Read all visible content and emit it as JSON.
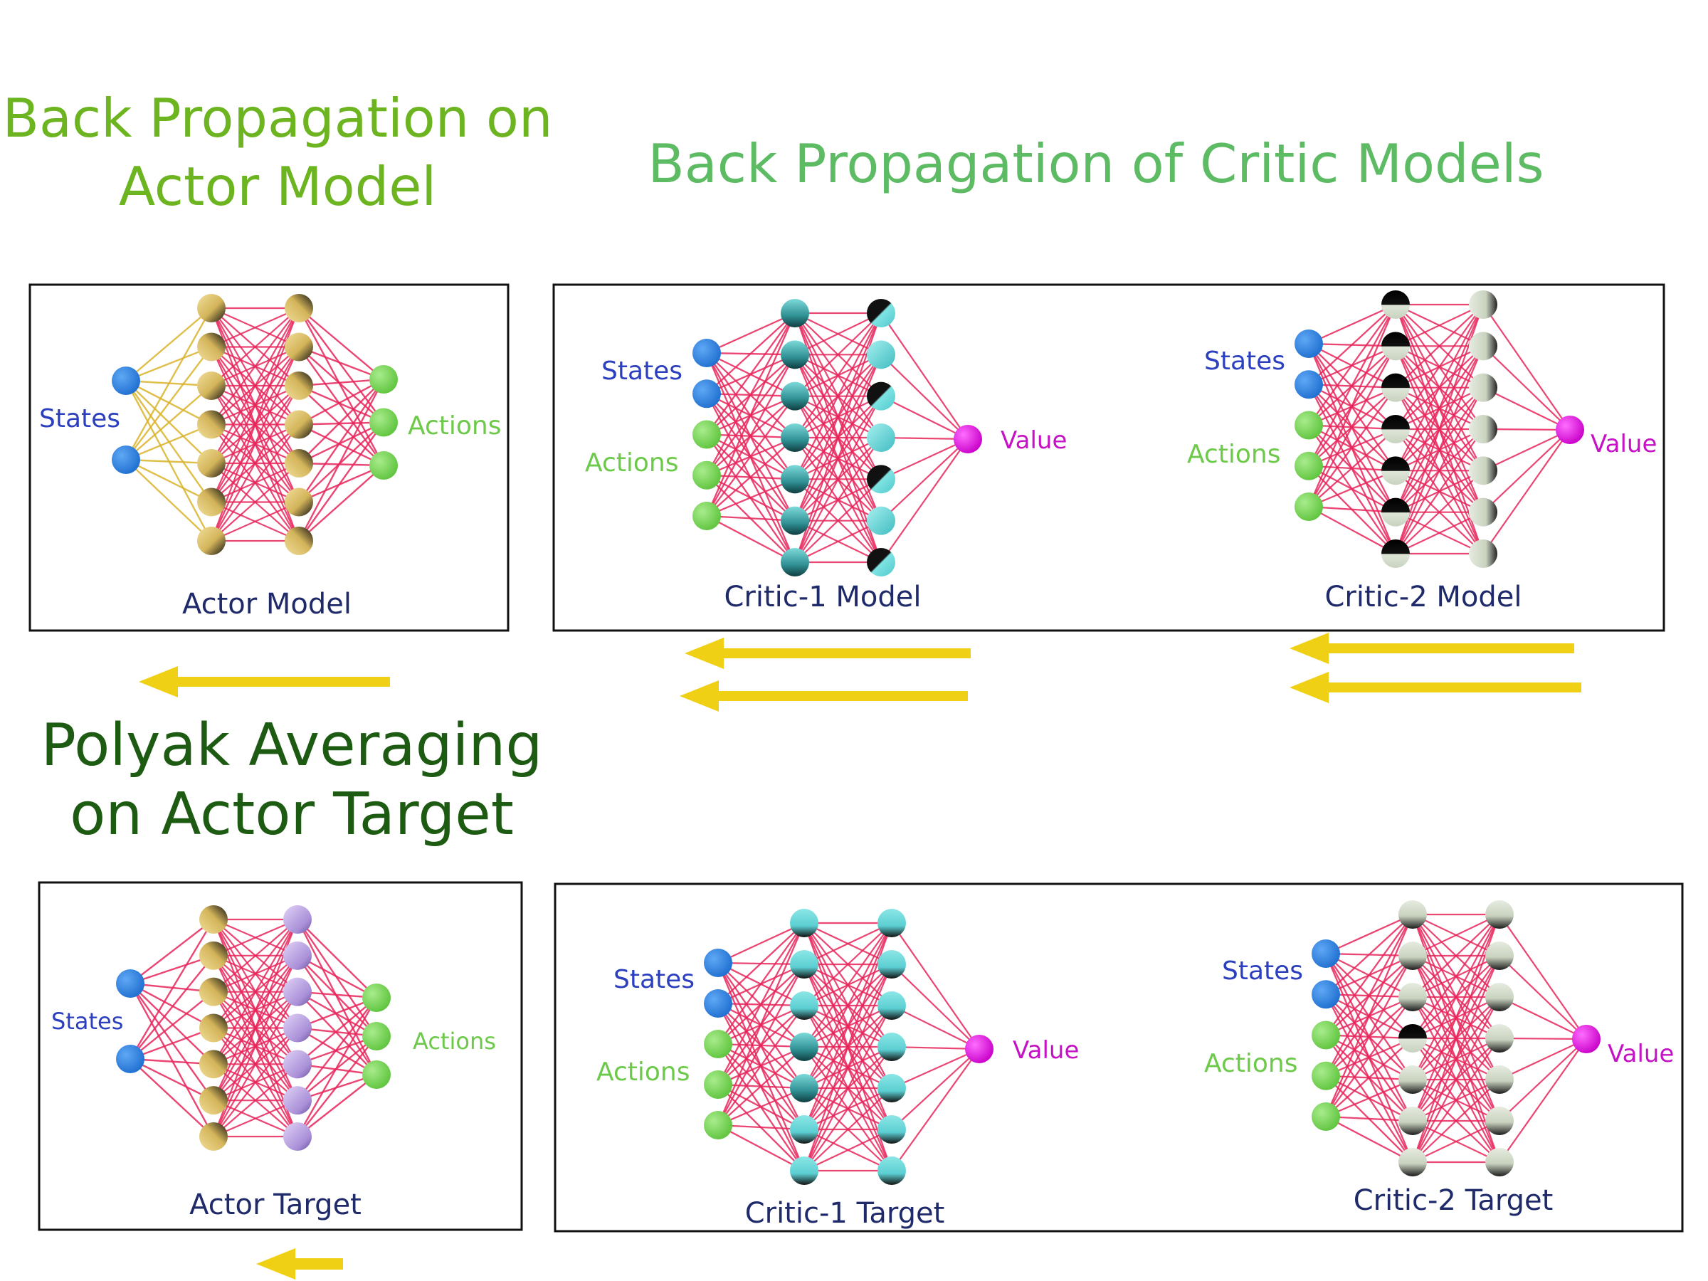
{
  "headings": {
    "actor_backprop": [
      "Back Propagation on",
      "Actor Model"
    ],
    "critic_backprop": "Back Propagation of Critic Models",
    "polyak": [
      "Polyak Averaging",
      "on Actor Target"
    ]
  },
  "labels": {
    "states": "States",
    "actions": "Actions",
    "value": "Value"
  },
  "networks": {
    "actor_model": {
      "title": "Actor Model",
      "inputs": [
        "States"
      ],
      "outputs": [
        "Actions"
      ]
    },
    "critic1_model": {
      "title": "Critic-1  Model",
      "inputs": [
        "States",
        "Actions"
      ],
      "outputs": [
        "Value"
      ]
    },
    "critic2_model": {
      "title": "Critic-2  Model",
      "inputs": [
        "States",
        "Actions"
      ],
      "outputs": [
        "Value"
      ]
    },
    "actor_target": {
      "title": "Actor Target",
      "inputs": [
        "States"
      ],
      "outputs": [
        "Actions"
      ]
    },
    "critic1_target": {
      "title": "Critic-1  Target",
      "inputs": [
        "States",
        "Actions"
      ],
      "outputs": [
        "Value"
      ]
    },
    "critic2_target": {
      "title": "Critic-2  Target",
      "inputs": [
        "States",
        "Actions"
      ],
      "outputs": [
        "Value"
      ]
    }
  },
  "colors": {
    "states_node": "#2a7fe0",
    "actions_node": "#7bd65c",
    "value_node": "#e010e0",
    "edge": "#e8245a",
    "edge_actor_input": "#d9b32a",
    "arrow": "#f0d015",
    "label_states": "#2b3fbf",
    "label_actions": "#6cc94a",
    "label_value": "#c412c4",
    "caption": "#1f2a6b"
  },
  "icons": [
    "arrow-left-icon"
  ]
}
